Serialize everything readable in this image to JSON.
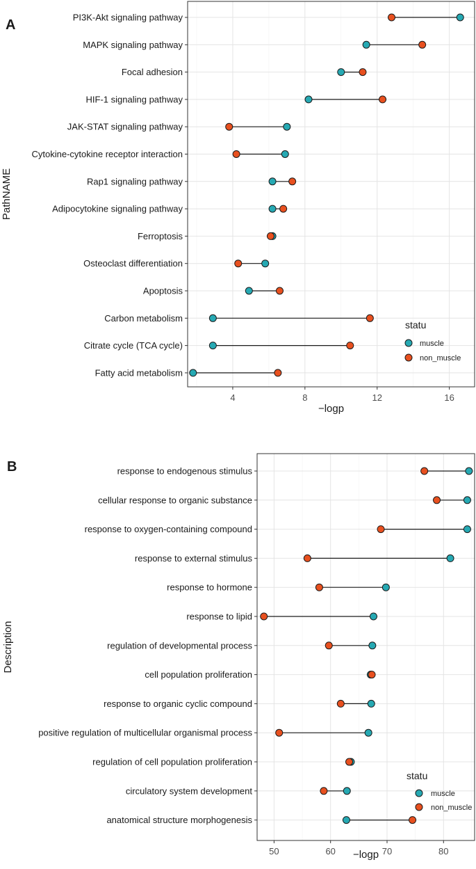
{
  "chart_data": [
    {
      "type": "dumbbell",
      "panel_label": "A",
      "xlabel": "−logp",
      "ylabel": "PathNAME",
      "xlim": [
        1.5,
        17.4
      ],
      "xticks": [
        4,
        8,
        12,
        16
      ],
      "legend": {
        "title": "statu",
        "position": "right-bottom",
        "entries": [
          "muscle",
          "non_muscle"
        ]
      },
      "categories": [
        "PI3K-Akt signaling pathway",
        "MAPK signaling pathway",
        "Focal adhesion",
        "HIF-1 signaling pathway",
        "JAK-STAT signaling pathway",
        "Cytokine-cytokine receptor interaction",
        "Rap1 signaling pathway",
        "Adipocytokine signaling pathway",
        "Ferroptosis",
        "Osteoclast differentiation",
        "Apoptosis",
        "Carbon metabolism",
        "Citrate cycle (TCA cycle)",
        "Fatty acid metabolism"
      ],
      "series": [
        {
          "name": "muscle",
          "color": "#26a9b3",
          "values": [
            16.6,
            11.4,
            10.0,
            8.2,
            7.0,
            6.9,
            6.2,
            6.2,
            6.2,
            5.8,
            4.9,
            2.9,
            2.9,
            1.8
          ]
        },
        {
          "name": "non_muscle",
          "color": "#e8501f",
          "values": [
            12.8,
            14.5,
            11.2,
            12.3,
            3.8,
            4.2,
            7.3,
            6.8,
            6.1,
            4.3,
            6.6,
            11.6,
            10.5,
            6.5
          ]
        }
      ]
    },
    {
      "type": "dumbbell",
      "panel_label": "B",
      "xlabel": "−logp",
      "ylabel": "Description",
      "xlim": [
        47.0,
        85.5
      ],
      "xticks": [
        50,
        60,
        70,
        80
      ],
      "legend": {
        "title": "statu",
        "position": "right-bottom",
        "entries": [
          "muscle",
          "non_muscle"
        ]
      },
      "categories": [
        "response to endogenous stimulus",
        "cellular response to organic substance",
        "response to oxygen-containing compound",
        "response to external stimulus",
        "response to hormone",
        "response to lipid",
        "regulation of developmental process",
        "cell population proliferation",
        "response to organic cyclic compound",
        "positive regulation of multicellular organismal process",
        "regulation of cell population proliferation",
        "circulatory system development",
        "anatomical structure morphogenesis"
      ],
      "series": [
        {
          "name": "muscle",
          "color": "#26a9b3",
          "values": [
            84.5,
            84.2,
            84.2,
            81.2,
            69.8,
            67.6,
            67.4,
            67.1,
            67.2,
            66.7,
            63.6,
            62.9,
            62.8
          ]
        },
        {
          "name": "non_muscle",
          "color": "#e8501f",
          "values": [
            76.6,
            78.8,
            68.9,
            55.9,
            58.0,
            48.2,
            59.7,
            67.3,
            61.8,
            50.9,
            63.3,
            58.8,
            74.5
          ]
        }
      ]
    }
  ]
}
